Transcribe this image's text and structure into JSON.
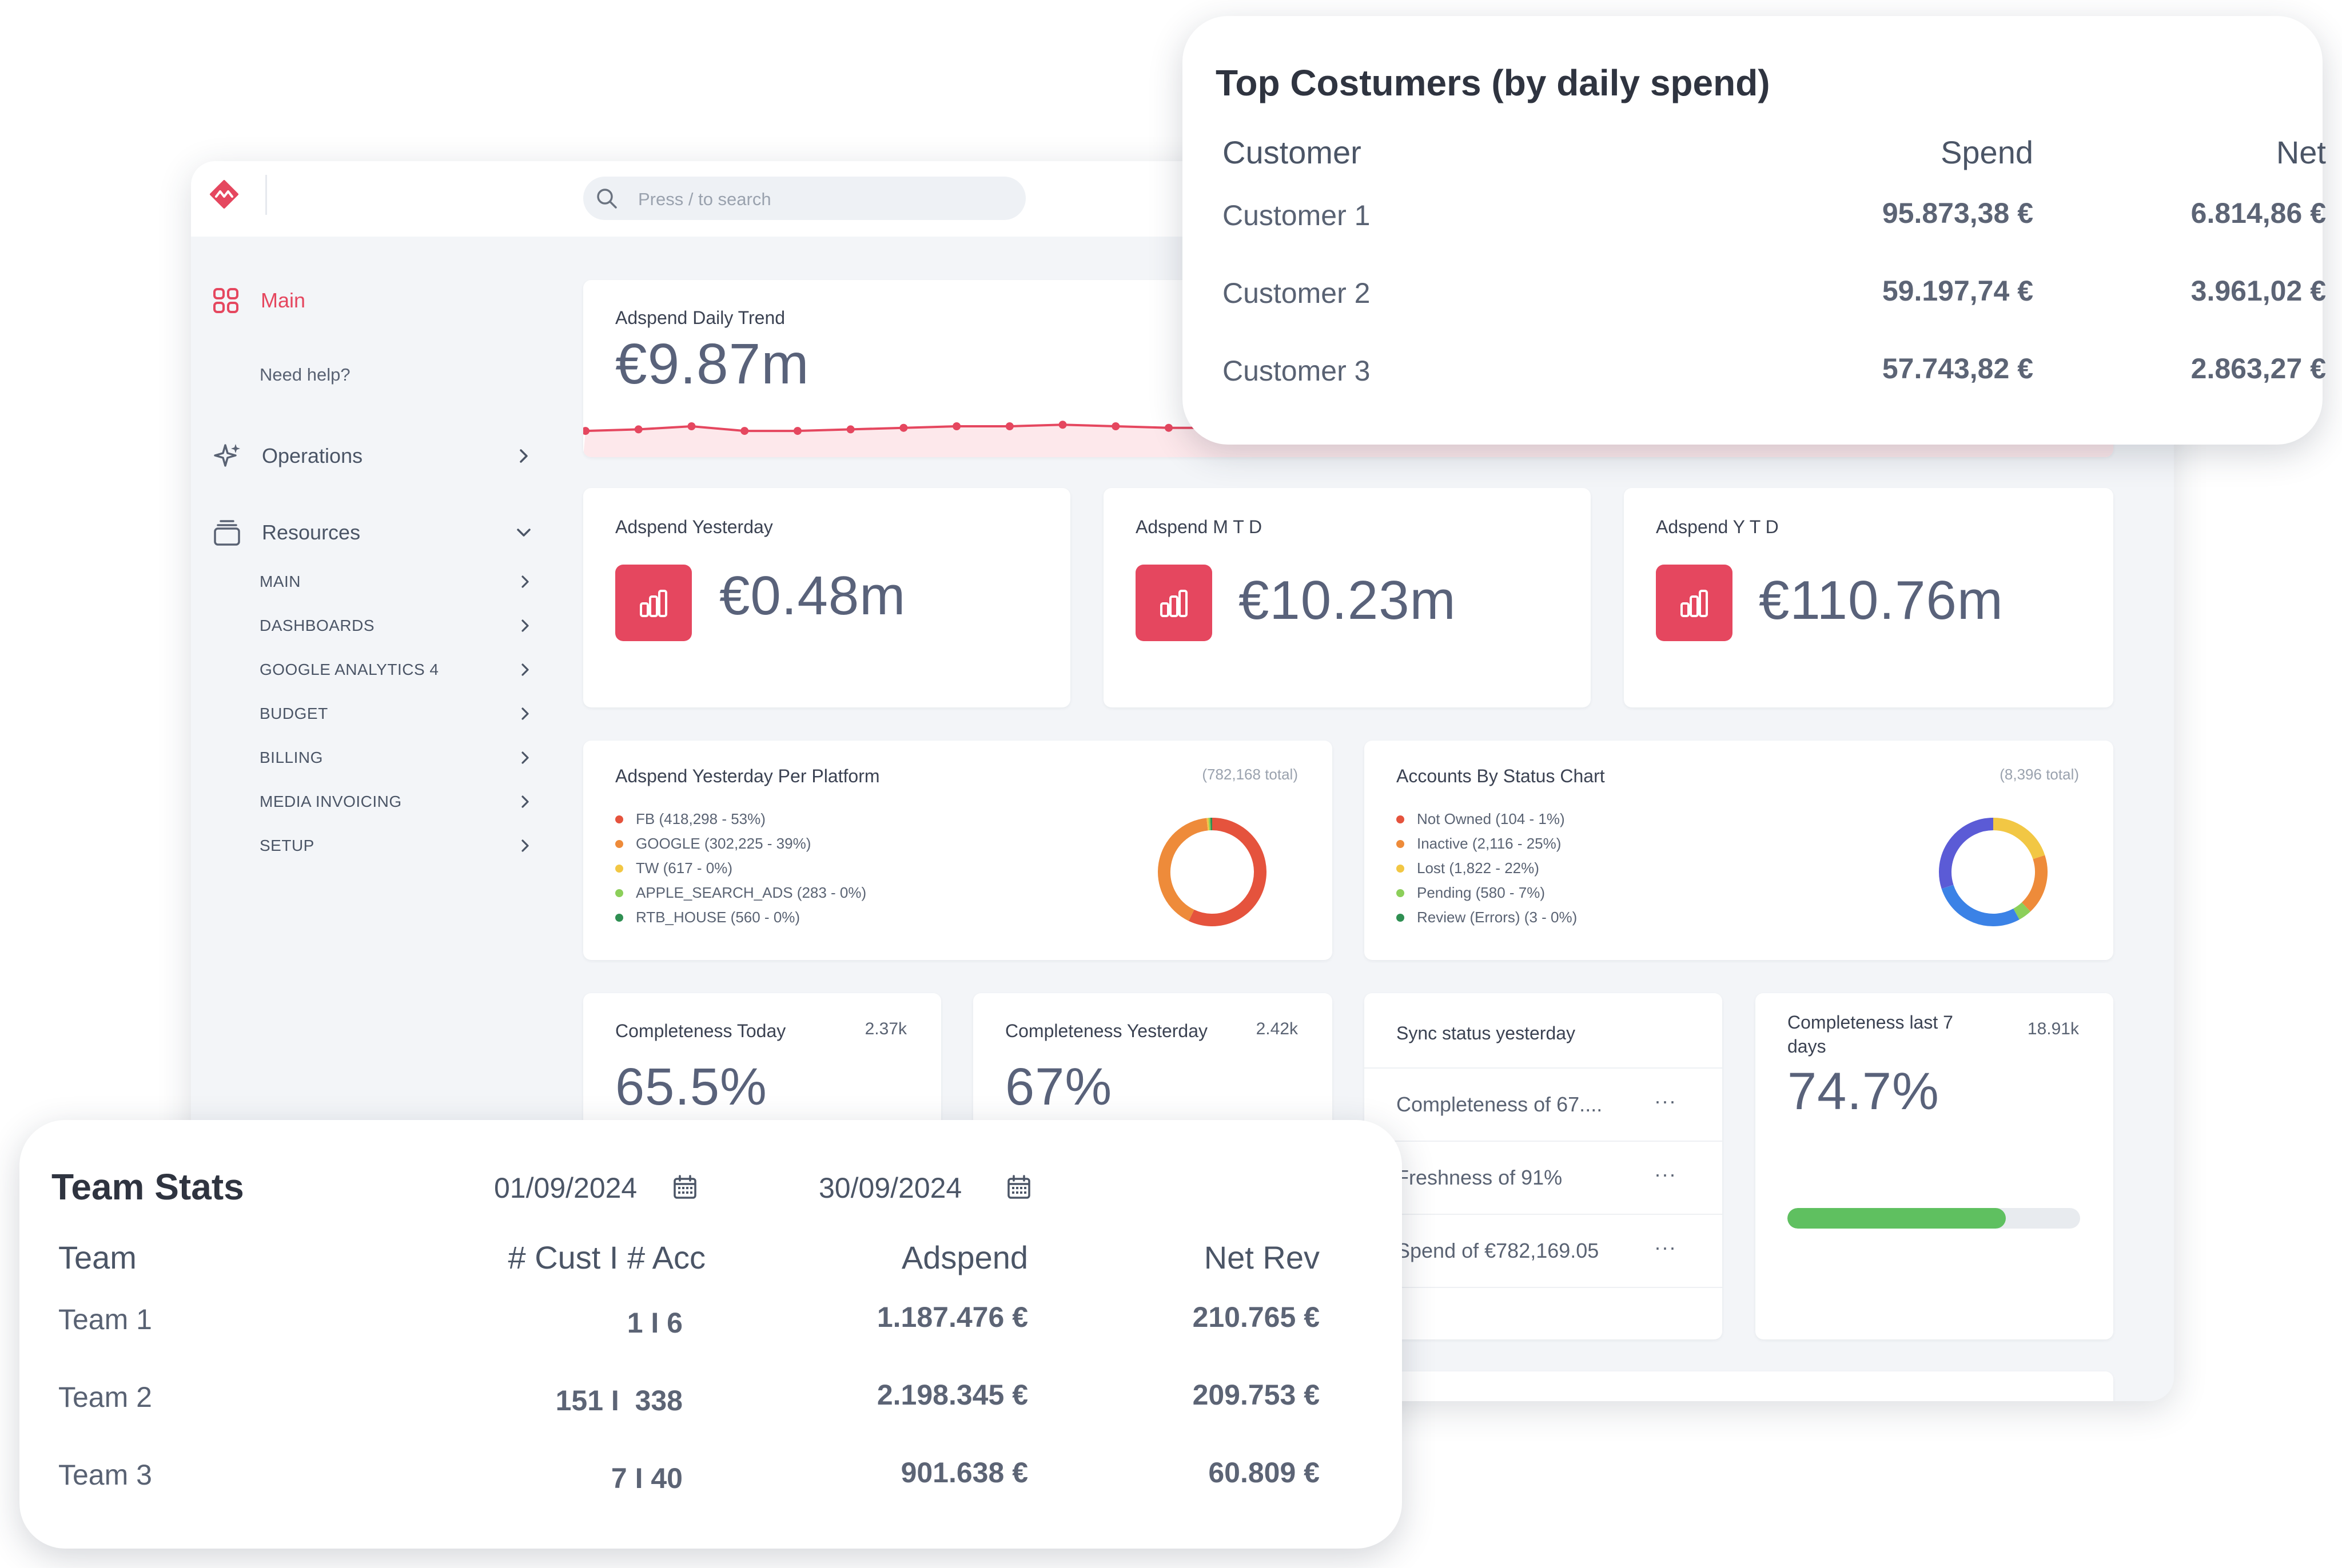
{
  "app": {
    "search": {
      "placeholder": "Press / to search"
    },
    "sidebar": {
      "main": "Main",
      "help": "Need help?",
      "operations": "Operations",
      "resources": "Resources",
      "resource_items": [
        "MAIN",
        "DASHBOARDS",
        "GOOGLE ANALYTICS 4",
        "BUDGET",
        "BILLING",
        "MEDIA INVOICING",
        "SETUP"
      ]
    },
    "trend": {
      "title": "Adspend Daily Trend",
      "value": "€9.87m",
      "chart_data": {
        "type": "line",
        "series": [
          {
            "values": [
              0.47,
              0.48,
              0.5,
              0.47,
              0.47,
              0.48,
              0.49,
              0.5,
              0.5,
              0.51,
              0.5,
              0.49
            ]
          }
        ],
        "color": "#e5475f"
      }
    },
    "kpis": [
      {
        "title": "Adspend Yesterday",
        "value": "€0.48m"
      },
      {
        "title": "Adspend M T D",
        "value": "€10.23m"
      },
      {
        "title": "Adspend Y T D",
        "value": "€110.76m"
      }
    ],
    "platform": {
      "title": "Adspend Yesterday Per Platform",
      "total": "(782,168 total)",
      "legend": [
        "FB (418,298 - 53%)",
        "GOOGLE (302,225 - 39%)",
        "TW (617 - 0%)",
        "APPLE_SEARCH_ADS (283 - 0%)",
        "RTB_HOUSE (560 - 0%)"
      ],
      "colors": [
        "#e5533d",
        "#ee8b3a",
        "#f2c744",
        "#8ccf5a",
        "#2f8f52"
      ],
      "chart_data": {
        "type": "pie",
        "categories": [
          "FB",
          "GOOGLE",
          "TW",
          "APPLE_SEARCH_ADS",
          "RTB_HOUSE"
        ],
        "values": [
          418298,
          302225,
          617,
          283,
          560
        ]
      }
    },
    "status": {
      "title": "Accounts By Status Chart",
      "total": "(8,396 total)",
      "legend": [
        "Not Owned (104 - 1%)",
        "Inactive (2,116 - 25%)",
        "Lost (1,822 - 22%)",
        "Pending (580 - 7%)",
        "Review (Errors) (3 - 0%)"
      ],
      "colors": [
        "#e5533d",
        "#ee8b3a",
        "#f2c744",
        "#8ccf5a",
        "#2f8f52"
      ],
      "chart_data": {
        "type": "pie",
        "categories": [
          "Yellow",
          "Orange",
          "Green",
          "Blue",
          "Indigo"
        ],
        "values": [
          20,
          18,
          4,
          28,
          30
        ],
        "colors": [
          "#f2c744",
          "#ee8b3a",
          "#8ccf5a",
          "#3b82e6",
          "#5b5bd6"
        ]
      }
    },
    "completeness_today": {
      "title": "Completeness Today",
      "count": "2.37k",
      "value": "65.5%"
    },
    "completeness_yesterday": {
      "title": "Completeness Yesterday",
      "count": "2.42k",
      "value": "67%"
    },
    "sync": {
      "title": "Sync status yesterday",
      "rows": [
        "Completeness of 67....",
        "Freshness of 91%",
        "Spend of €782,169.05"
      ],
      "more": "···"
    },
    "last7": {
      "title_1": "Completeness last 7",
      "title_2": "days",
      "count": "18.91k",
      "value": "74.7%",
      "progress": 0.747,
      "progress_color": "#5fc060"
    }
  },
  "top_customers": {
    "title": "Top Costumers (by daily spend)",
    "headers": [
      "Customer",
      "Spend",
      "Net"
    ],
    "rows": [
      [
        "Customer 1",
        "95.873,38 €",
        "6.814,86 €"
      ],
      [
        "Customer 2",
        "59.197,74 €",
        "3.961,02 €"
      ],
      [
        "Customer 3",
        "57.743,82 €",
        "2.863,27 €"
      ]
    ]
  },
  "team_stats": {
    "title": "Team Stats",
    "date_from": "01/09/2024",
    "date_to": "30/09/2024",
    "headers": [
      "Team",
      "# Cust I # Acc",
      "Adspend",
      "Net Rev"
    ],
    "rows": [
      [
        "Team 1",
        "1 I 6",
        "1.187.476 €",
        "210.765 €"
      ],
      [
        "Team 2",
        "151 I  338",
        "2.198.345 €",
        "209.753 €"
      ],
      [
        "Team 3",
        "7 I 40",
        "901.638 €",
        "60.809 €"
      ]
    ]
  }
}
